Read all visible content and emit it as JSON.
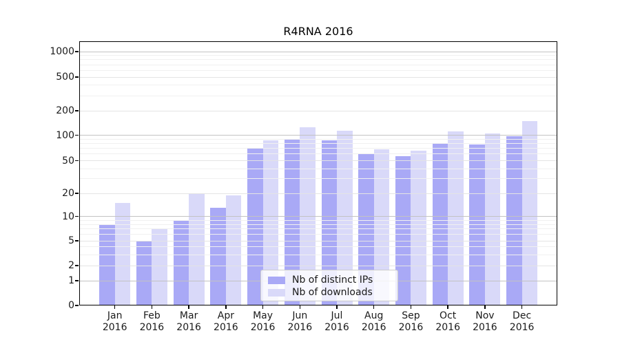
{
  "chart_data": {
    "type": "bar",
    "title": "R4RNA 2016",
    "categories": [
      "Jan",
      "Feb",
      "Mar",
      "Apr",
      "May",
      "Jun",
      "Jul",
      "Aug",
      "Sep",
      "Oct",
      "Nov",
      "Dec"
    ],
    "category_year_label": "2016",
    "series": [
      {
        "name": "Nb of distinct IPs",
        "color": "#a9a9f6",
        "values": [
          8,
          5,
          9,
          13,
          70,
          90,
          88,
          60,
          56,
          80,
          78,
          98
        ]
      },
      {
        "name": "Nb of downloads",
        "color": "#d9d9f9",
        "values": [
          15,
          7,
          20,
          19,
          88,
          125,
          114,
          68,
          66,
          112,
          105,
          150
        ]
      }
    ],
    "yscale": "symlog",
    "yticks": [
      0,
      1,
      2,
      5,
      10,
      20,
      50,
      100,
      200,
      500,
      1000
    ],
    "ylim": [
      0,
      1300
    ],
    "xlabel": "",
    "ylabel": "",
    "grid": true,
    "legend_position": "lower center"
  },
  "legend": {
    "items": [
      {
        "label": "Nb of distinct IPs",
        "color": "#a9a9f6"
      },
      {
        "label": "Nb of downloads",
        "color": "#d9d9f9"
      }
    ]
  },
  "colors": {
    "ips_bar": "#a9a9f6",
    "downloads_bar": "#d9d9f9",
    "major_grid": "#c2c2c2",
    "minor_grid": "#f0f0f0",
    "axis": "#000000"
  }
}
